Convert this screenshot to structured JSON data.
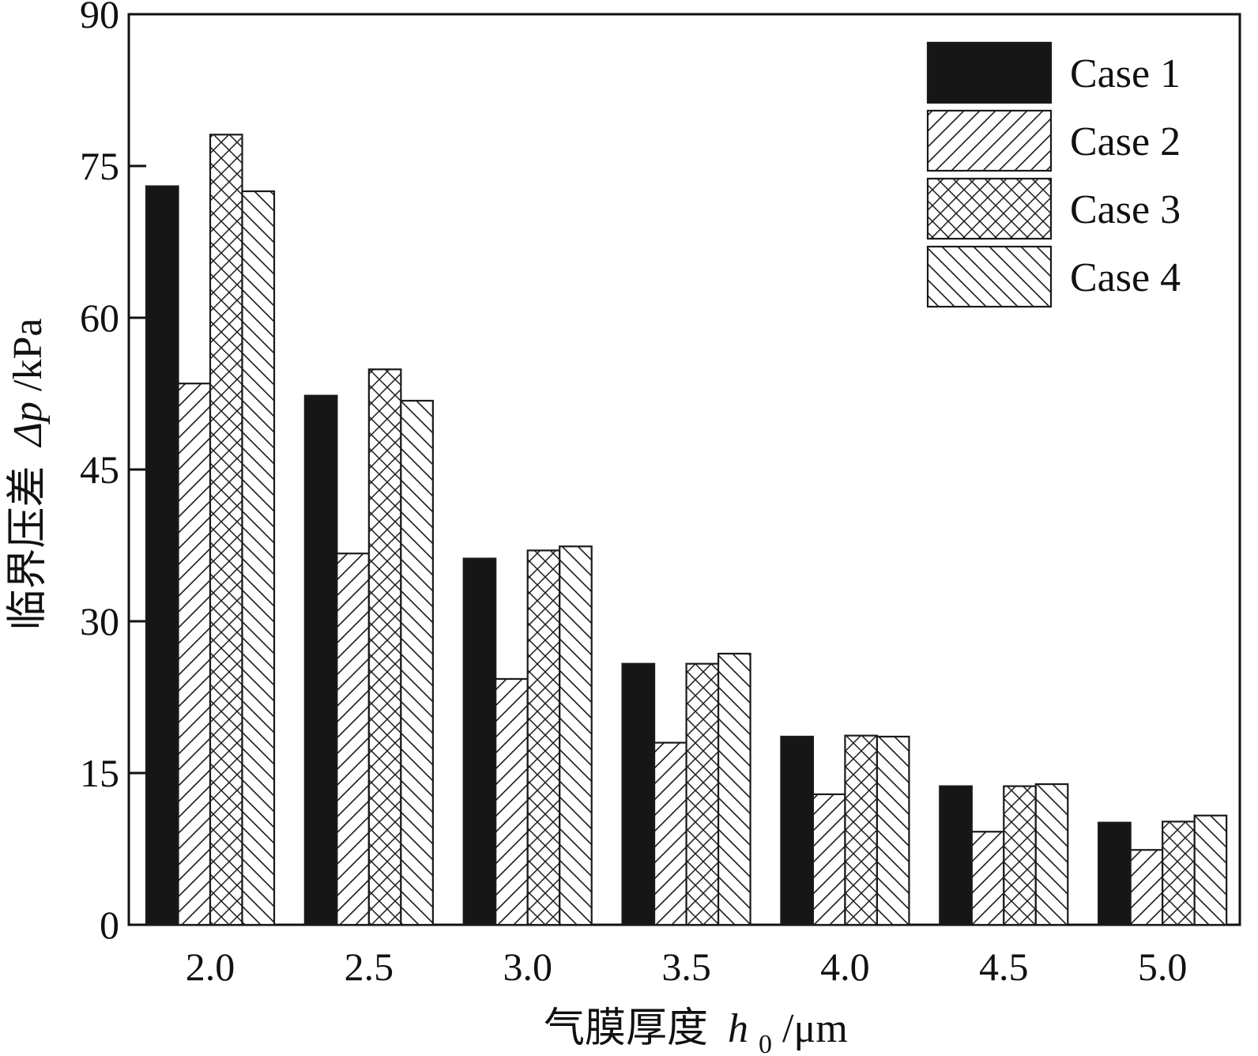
{
  "chart_data": {
    "type": "bar",
    "title": "",
    "xlabel": "气膜厚度",
    "xlabel_symbol": "h",
    "xlabel_subscript": "0",
    "xlabel_unit": "/μm",
    "ylabel": "临界压差",
    "ylabel_symbol": "Δp",
    "ylabel_unit": "/kPa",
    "categories": [
      "2.0",
      "2.5",
      "3.0",
      "3.5",
      "4.0",
      "4.5",
      "5.0"
    ],
    "yticks": [
      "0",
      "15",
      "30",
      "45",
      "60",
      "75",
      "90"
    ],
    "ylim": [
      0,
      90
    ],
    "legend_position": "top-right",
    "series": [
      {
        "name": "Case 1",
        "pattern": "solid",
        "values": [
          73.0,
          52.3,
          36.2,
          25.8,
          18.6,
          13.7,
          10.1
        ]
      },
      {
        "name": "Case 2",
        "pattern": "diag-up",
        "values": [
          53.5,
          36.7,
          24.3,
          18.0,
          12.9,
          9.2,
          7.4
        ]
      },
      {
        "name": "Case 3",
        "pattern": "cross",
        "values": [
          78.1,
          54.9,
          37.0,
          25.8,
          18.7,
          13.7,
          10.2
        ]
      },
      {
        "name": "Case 4",
        "pattern": "diag-down",
        "values": [
          72.5,
          51.8,
          37.4,
          26.8,
          18.6,
          13.9,
          10.8
        ]
      }
    ],
    "colors": {
      "solid_fill": "#161616",
      "pattern_stroke": "#1a1a1a",
      "background": "#ffffff"
    }
  }
}
